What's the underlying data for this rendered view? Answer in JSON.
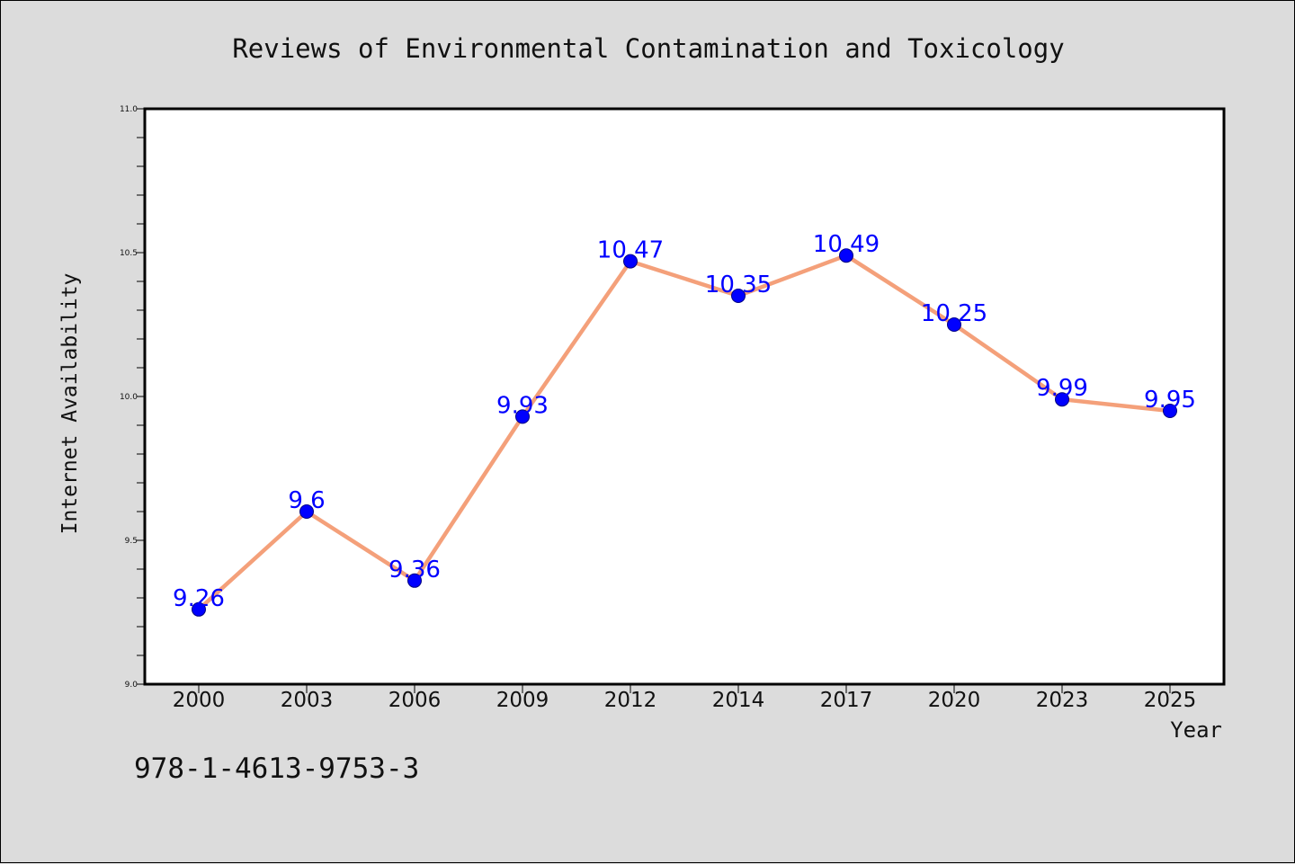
{
  "chart_data": {
    "type": "line",
    "title": "Reviews of Environmental Contamination and Toxicology",
    "xlabel": "Year",
    "ylabel": "Internet Availability",
    "categories": [
      "2000",
      "2003",
      "2006",
      "2009",
      "2012",
      "2014",
      "2017",
      "2020",
      "2023",
      "2025"
    ],
    "series": [
      {
        "values": [
          9.26,
          9.6,
          9.36,
          9.93,
          10.47,
          10.35,
          10.49,
          10.25,
          9.99,
          9.95
        ],
        "data_labels": [
          "9.26",
          "9.6",
          "9.36",
          "9.93",
          "10.47",
          "10.35",
          "10.49",
          "10.25",
          "9.99",
          "9.95"
        ]
      }
    ],
    "ylim": [
      9.0,
      11.0
    ],
    "yticks": [
      "9.0",
      "9.5",
      "10.0",
      "10.5",
      "11.0"
    ],
    "grid": false,
    "colors": {
      "line": "#f4a07a",
      "marker": "#0000ff",
      "marker_edge": "#000080",
      "data_label": "#0000ff",
      "plot_background": "#ffffff",
      "figure_background": "#dcdcdc"
    }
  },
  "footer_text": "978-1-4613-9753-3"
}
